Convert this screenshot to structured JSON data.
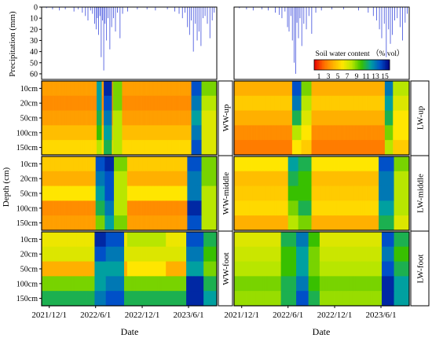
{
  "chart_data": {
    "type": "heatmap",
    "precipitation": {
      "ylabel": "Precipitation (mm)",
      "yticks": [
        0,
        10,
        20,
        30,
        40,
        50,
        60
      ],
      "ylim": [
        0,
        65
      ],
      "inverted": true,
      "color": "#3b4bdc",
      "events_left": [
        {
          "d": "2021-11-20",
          "v": 1
        },
        {
          "d": "2021-12-14",
          "v": 2
        },
        {
          "d": "2022-01-10",
          "v": 3
        },
        {
          "d": "2022-02-02",
          "v": 2
        },
        {
          "d": "2022-03-08",
          "v": 4
        },
        {
          "d": "2022-03-25",
          "v": 2
        },
        {
          "d": "2022-04-10",
          "v": 5
        },
        {
          "d": "2022-04-22",
          "v": 8
        },
        {
          "d": "2022-05-02",
          "v": 12
        },
        {
          "d": "2022-05-12",
          "v": 3
        },
        {
          "d": "2022-05-20",
          "v": 6
        },
        {
          "d": "2022-05-28",
          "v": 15
        },
        {
          "d": "2022-06-03",
          "v": 20
        },
        {
          "d": "2022-06-08",
          "v": 10
        },
        {
          "d": "2022-06-13",
          "v": 25
        },
        {
          "d": "2022-06-18",
          "v": 8
        },
        {
          "d": "2022-06-23",
          "v": 45
        },
        {
          "d": "2022-06-28",
          "v": 12
        },
        {
          "d": "2022-07-03",
          "v": 57
        },
        {
          "d": "2022-07-08",
          "v": 15
        },
        {
          "d": "2022-07-14",
          "v": 30
        },
        {
          "d": "2022-07-20",
          "v": 10
        },
        {
          "d": "2022-07-27",
          "v": 38
        },
        {
          "d": "2022-08-03",
          "v": 18
        },
        {
          "d": "2022-08-10",
          "v": 10
        },
        {
          "d": "2022-08-18",
          "v": 22
        },
        {
          "d": "2022-08-26",
          "v": 5
        },
        {
          "d": "2022-09-05",
          "v": 28
        },
        {
          "d": "2022-09-15",
          "v": 6
        },
        {
          "d": "2022-10-05",
          "v": 4
        },
        {
          "d": "2022-11-12",
          "v": 2
        },
        {
          "d": "2022-12-20",
          "v": 2
        },
        {
          "d": "2023-01-22",
          "v": 3
        },
        {
          "d": "2023-03-10",
          "v": 2
        },
        {
          "d": "2023-04-08",
          "v": 4
        },
        {
          "d": "2023-04-25",
          "v": 6
        },
        {
          "d": "2023-05-08",
          "v": 10
        },
        {
          "d": "2023-05-18",
          "v": 5
        },
        {
          "d": "2023-05-28",
          "v": 18
        },
        {
          "d": "2023-06-05",
          "v": 25
        },
        {
          "d": "2023-06-12",
          "v": 12
        },
        {
          "d": "2023-06-20",
          "v": 40
        },
        {
          "d": "2023-06-28",
          "v": 15
        },
        {
          "d": "2023-07-05",
          "v": 30
        },
        {
          "d": "2023-07-12",
          "v": 22
        },
        {
          "d": "2023-07-20",
          "v": 35
        },
        {
          "d": "2023-07-28",
          "v": 10
        },
        {
          "d": "2023-08-05",
          "v": 8
        },
        {
          "d": "2023-08-14",
          "v": 15
        },
        {
          "d": "2023-08-24",
          "v": 28
        },
        {
          "d": "2023-09-02",
          "v": 12
        },
        {
          "d": "2023-09-10",
          "v": 5
        }
      ],
      "events_right": [
        {
          "d": "2021-11-22",
          "v": 1
        },
        {
          "d": "2021-12-20",
          "v": 2
        },
        {
          "d": "2022-01-15",
          "v": 3
        },
        {
          "d": "2022-02-18",
          "v": 2
        },
        {
          "d": "2022-03-15",
          "v": 3
        },
        {
          "d": "2022-04-12",
          "v": 5
        },
        {
          "d": "2022-04-28",
          "v": 7
        },
        {
          "d": "2022-05-08",
          "v": 10
        },
        {
          "d": "2022-05-20",
          "v": 4
        },
        {
          "d": "2022-05-30",
          "v": 18
        },
        {
          "d": "2022-06-05",
          "v": 22
        },
        {
          "d": "2022-06-12",
          "v": 8
        },
        {
          "d": "2022-06-18",
          "v": 30
        },
        {
          "d": "2022-06-25",
          "v": 50
        },
        {
          "d": "2022-07-01",
          "v": 60
        },
        {
          "d": "2022-07-06",
          "v": 14
        },
        {
          "d": "2022-07-12",
          "v": 28
        },
        {
          "d": "2022-07-18",
          "v": 10
        },
        {
          "d": "2022-07-25",
          "v": 35
        },
        {
          "d": "2022-08-02",
          "v": 15
        },
        {
          "d": "2022-08-12",
          "v": 20
        },
        {
          "d": "2022-08-22",
          "v": 8
        },
        {
          "d": "2022-09-02",
          "v": 24
        },
        {
          "d": "2022-09-18",
          "v": 5
        },
        {
          "d": "2022-10-10",
          "v": 3
        },
        {
          "d": "2022-11-20",
          "v": 2
        },
        {
          "d": "2023-01-05",
          "v": 2
        },
        {
          "d": "2023-03-05",
          "v": 3
        },
        {
          "d": "2023-04-12",
          "v": 5
        },
        {
          "d": "2023-05-02",
          "v": 8
        },
        {
          "d": "2023-05-15",
          "v": 12
        },
        {
          "d": "2023-05-26",
          "v": 20
        },
        {
          "d": "2023-06-04",
          "v": 28
        },
        {
          "d": "2023-06-14",
          "v": 15
        },
        {
          "d": "2023-06-22",
          "v": 45
        },
        {
          "d": "2023-07-01",
          "v": 20
        },
        {
          "d": "2023-07-08",
          "v": 33
        },
        {
          "d": "2023-07-16",
          "v": 25
        },
        {
          "d": "2023-07-25",
          "v": 12
        },
        {
          "d": "2023-08-04",
          "v": 10
        },
        {
          "d": "2023-08-15",
          "v": 18
        },
        {
          "d": "2023-08-25",
          "v": 30
        },
        {
          "d": "2023-09-04",
          "v": 14
        },
        {
          "d": "2023-09-12",
          "v": 6
        }
      ]
    },
    "soil_water": {
      "colorbar_title": "Soil water content （% vol）",
      "colorbar_ticks": [
        "1",
        "3",
        "5",
        "7",
        "9",
        "11",
        "13",
        "15"
      ],
      "colorbar_range": [
        0,
        16
      ],
      "colormap": [
        "#e60000",
        "#ff6a00",
        "#ffb000",
        "#ffe600",
        "#b8e600",
        "#38c000",
        "#00a0a0",
        "#0050c8",
        "#000080"
      ],
      "depth_labels": [
        "10cm",
        "20cm",
        "50cm",
        "100cm",
        "150cm"
      ],
      "ylabel": "Depth (cm)",
      "xlabel": "Date",
      "x_ticks": [
        "2021/12/1",
        "2022/6/1",
        "2022/12/1",
        "2023/6/1"
      ],
      "date_range": [
        "2021-11-01",
        "2023-09-20"
      ],
      "panels": [
        {
          "id": "WW-up",
          "label": "WW-up",
          "side": "left",
          "row": 0,
          "base": [
            3.5,
            3.0,
            3.5,
            4.5,
            5.5
          ],
          "wet": [
            {
              "start": "2022-06-05",
              "end": "2022-06-25",
              "depth": [
                12,
                12,
                11,
                10,
                8
              ]
            },
            {
              "start": "2022-07-01",
              "end": "2022-08-01",
              "depth": [
                15,
                14,
                13,
                12,
                11
              ]
            },
            {
              "start": "2022-08-05",
              "end": "2022-09-10",
              "depth": [
                9,
                9,
                8,
                8,
                8
              ]
            },
            {
              "start": "2023-06-10",
              "end": "2023-07-20",
              "depth": [
                14,
                13,
                12,
                13,
                14
              ]
            },
            {
              "start": "2023-07-20",
              "end": "2023-09-20",
              "depth": [
                9,
                8,
                7,
                7,
                7
              ]
            }
          ]
        },
        {
          "id": "WW-middle",
          "label": "WW-middle",
          "side": "left",
          "row": 1,
          "base": [
            5.0,
            4.0,
            6.0,
            3.0,
            3.5
          ],
          "wet": [
            {
              "start": "2022-06-01",
              "end": "2022-07-05",
              "depth": [
                14,
                13,
                12,
                11,
                9
              ]
            },
            {
              "start": "2022-07-05",
              "end": "2022-08-10",
              "depth": [
                15,
                14,
                14,
                13,
                12
              ]
            },
            {
              "start": "2022-08-10",
              "end": "2022-10-01",
              "depth": [
                9,
                8,
                8,
                8,
                9
              ]
            },
            {
              "start": "2023-05-25",
              "end": "2023-07-20",
              "depth": [
                14,
                13,
                13,
                15,
                14
              ]
            },
            {
              "start": "2023-07-20",
              "end": "2023-09-20",
              "depth": [
                9,
                9,
                8,
                8,
                8
              ]
            }
          ]
        },
        {
          "id": "WW-foot",
          "label": "WW-foot",
          "side": "left",
          "row": 2,
          "base": [
            6.5,
            7.0,
            4.0,
            9.0,
            11.0
          ],
          "wet": [
            {
              "start": "2022-05-25",
              "end": "2022-07-10",
              "depth": [
                15,
                14,
                12,
                12,
                13
              ]
            },
            {
              "start": "2022-07-10",
              "end": "2022-09-20",
              "depth": [
                14,
                13,
                12,
                13,
                14
              ]
            },
            {
              "start": "2022-10-01",
              "end": "2023-03-01",
              "depth": [
                8,
                7,
                6,
                9,
                11
              ]
            },
            {
              "start": "2023-05-20",
              "end": "2023-07-30",
              "depth": [
                14,
                13,
                12,
                15,
                15
              ]
            },
            {
              "start": "2023-07-30",
              "end": "2023-09-20",
              "depth": [
                11,
                10,
                9,
                11,
                12
              ]
            }
          ]
        },
        {
          "id": "LW-up",
          "label": "LW-up",
          "side": "right",
          "row": 0,
          "base": [
            4.0,
            5.0,
            4.0,
            3.0,
            2.5
          ],
          "wet": [
            {
              "start": "2022-06-15",
              "end": "2022-07-20",
              "depth": [
                14,
                13,
                11,
                8,
                6
              ]
            },
            {
              "start": "2022-07-20",
              "end": "2022-09-01",
              "depth": [
                9,
                8,
                7,
                6,
                5
              ]
            },
            {
              "start": "2023-06-15",
              "end": "2023-07-15",
              "depth": [
                13,
                12,
                11,
                9,
                8
              ]
            },
            {
              "start": "2023-07-15",
              "end": "2023-09-20",
              "depth": [
                8,
                7,
                6,
                6,
                5
              ]
            }
          ]
        },
        {
          "id": "LW-middle",
          "label": "LW-middle",
          "side": "right",
          "row": 1,
          "base": [
            6.0,
            4.5,
            5.0,
            5.5,
            4.0
          ],
          "wet": [
            {
              "start": "2022-06-01",
              "end": "2022-07-10",
              "depth": [
                12,
                11,
                10,
                9,
                8
              ]
            },
            {
              "start": "2022-07-10",
              "end": "2022-09-01",
              "depth": [
                11,
                10,
                10,
                11,
                9
              ]
            },
            {
              "start": "2023-05-20",
              "end": "2023-07-20",
              "depth": [
                14,
                13,
                13,
                12,
                11
              ]
            },
            {
              "start": "2023-07-20",
              "end": "2023-09-20",
              "depth": [
                9,
                8,
                8,
                8,
                7
              ]
            }
          ]
        },
        {
          "id": "LW-foot",
          "label": "LW-foot",
          "side": "right",
          "row": 2,
          "base": [
            7.0,
            7.5,
            8.0,
            9.0,
            8.5
          ],
          "wet": [
            {
              "start": "2022-05-01",
              "end": "2022-07-01",
              "depth": [
                11,
                10,
                10,
                11,
                11
              ]
            },
            {
              "start": "2022-07-01",
              "end": "2022-08-20",
              "depth": [
                13,
                12,
                12,
                13,
                14
              ]
            },
            {
              "start": "2022-08-20",
              "end": "2022-10-01",
              "depth": [
                10,
                9,
                9,
                10,
                11
              ]
            },
            {
              "start": "2023-06-01",
              "end": "2023-07-20",
              "depth": [
                14,
                13,
                14,
                15,
                15
              ]
            },
            {
              "start": "2023-07-20",
              "end": "2023-09-20",
              "depth": [
                11,
                10,
                11,
                12,
                12
              ]
            }
          ]
        }
      ]
    }
  }
}
